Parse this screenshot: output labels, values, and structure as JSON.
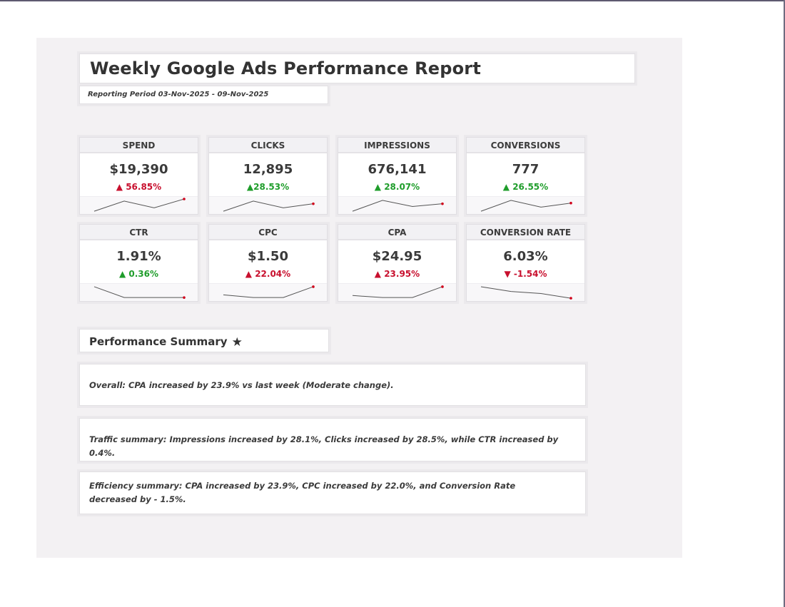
{
  "report": {
    "title": "Weekly Google Ads Performance Report",
    "reporting_period": "Reporting Period 03-Nov-2025 - 09-Nov-2025"
  },
  "colors": {
    "increase_bad": "#c8102e",
    "increase_good": "#1f9d2b",
    "sheet_background": "#f3f1f3",
    "card_header": "#f2f1f4"
  },
  "kpis": [
    {
      "label": "SPEND",
      "value": "$19,390",
      "delta": "▲ 56.85%",
      "direction": "up",
      "sentiment": "red",
      "spark": [
        0.1,
        0.85,
        0.35,
        1.0
      ]
    },
    {
      "label": "CLICKS",
      "value": "12,895",
      "delta": "▲28.53%",
      "direction": "up",
      "sentiment": "green",
      "spark": [
        0.1,
        0.85,
        0.35,
        0.65
      ]
    },
    {
      "label": "IMPRESSIONS",
      "value": "676,141",
      "delta": "▲ 28.07%",
      "direction": "up",
      "sentiment": "green",
      "spark": [
        0.1,
        0.9,
        0.45,
        0.65
      ]
    },
    {
      "label": "CONVERSIONS",
      "value": "777",
      "delta": "▲ 26.55%",
      "direction": "up",
      "sentiment": "green",
      "spark": [
        0.1,
        0.9,
        0.4,
        0.7
      ]
    },
    {
      "label": "CTR",
      "value": "1.91%",
      "delta": "▲ 0.36%",
      "direction": "up",
      "sentiment": "green",
      "spark": [
        0.95,
        0.15,
        0.15,
        0.15
      ]
    },
    {
      "label": "CPC",
      "value": "$1.50",
      "delta": "▲ 22.04%",
      "direction": "up",
      "sentiment": "red",
      "spark": [
        0.35,
        0.15,
        0.15,
        0.95
      ]
    },
    {
      "label": "CPA",
      "value": "$24.95",
      "delta": "▲ 23.95%",
      "direction": "up",
      "sentiment": "red",
      "spark": [
        0.3,
        0.15,
        0.15,
        0.95
      ]
    },
    {
      "label": "CONVERSION RATE",
      "value": "6.03%",
      "delta": "▼ -1.54%",
      "direction": "down",
      "sentiment": "red",
      "spark": [
        0.95,
        0.6,
        0.45,
        0.1
      ]
    }
  ],
  "summary": {
    "heading": "Performance Summary",
    "heading_icon": "star-icon",
    "lines": [
      "Overall: CPA increased by 23.9% vs last week (Moderate change).",
      "Traffic summary: Impressions increased by 28.1%, Clicks increased by 28.5%, while CTR increased by 0.4%.",
      "Efficiency summary: CPA increased by 23.9%, CPC increased by 22.0%, and Conversion Rate decreased by - 1.5%."
    ]
  }
}
